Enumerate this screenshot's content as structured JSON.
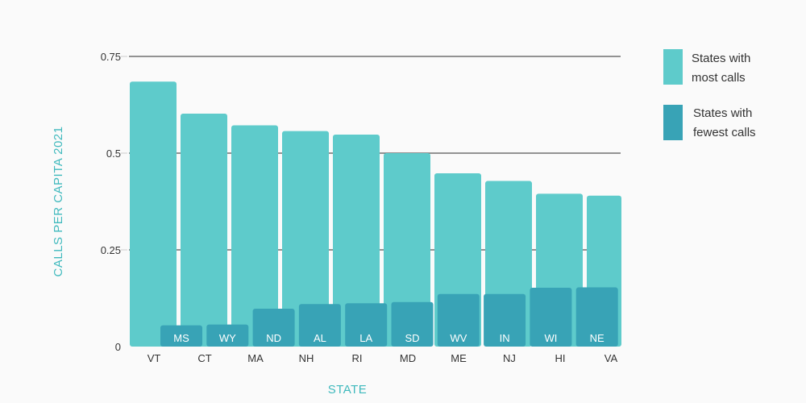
{
  "chart_data": {
    "type": "bar",
    "categories": [
      "VT",
      "CT",
      "MA",
      "NH",
      "RI",
      "MD",
      "ME",
      "NJ",
      "HI",
      "VA"
    ],
    "series": [
      {
        "name": "States with most calls",
        "color": "#5ecbcb",
        "labels": [
          "VT",
          "CT",
          "MA",
          "NH",
          "RI",
          "MD",
          "ME",
          "NJ",
          "HI",
          "VA"
        ],
        "values": [
          0.685,
          0.602,
          0.572,
          0.557,
          0.548,
          0.5,
          0.448,
          0.428,
          0.395,
          0.39
        ]
      },
      {
        "name": "States with fewest calls",
        "color": "#38a3b6",
        "labels": [
          "MS",
          "WY",
          "ND",
          "AL",
          "LA",
          "SD",
          "WV",
          "IN",
          "WI",
          "NE"
        ],
        "values": [
          0.055,
          0.057,
          0.098,
          0.11,
          0.112,
          0.115,
          0.136,
          0.136,
          0.152,
          0.153
        ]
      }
    ],
    "y_ticks": [
      "0",
      "0.25",
      "0.5",
      "0.75"
    ],
    "ylim": [
      0,
      0.75
    ],
    "xlabel": "STATE",
    "ylabel": "CALLS PER CAPITA 2021",
    "legend": {
      "position": "right",
      "items": [
        {
          "line1": "States with",
          "line2": "most calls"
        },
        {
          "line1": "States with",
          "line2": "fewest calls"
        }
      ]
    },
    "grid": true,
    "grid_color": "#555555"
  }
}
